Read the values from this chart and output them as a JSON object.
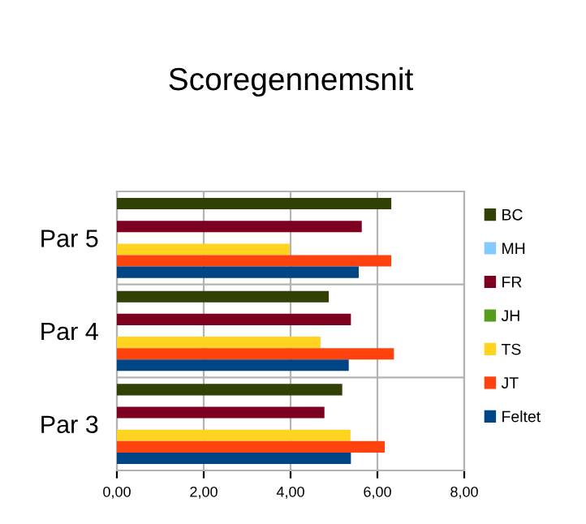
{
  "chart_data": {
    "type": "bar",
    "orientation": "horizontal",
    "title": "Scoregennemsnit",
    "categories": [
      "Par 5",
      "Par 4",
      "Par 3"
    ],
    "series": [
      {
        "name": "BC",
        "color": "#314004",
        "values": [
          6.32,
          4.88,
          5.19
        ]
      },
      {
        "name": "MH",
        "color": "#83caff",
        "values": [
          null,
          null,
          null
        ]
      },
      {
        "name": "FR",
        "color": "#7e0021",
        "values": [
          5.64,
          5.39,
          4.78
        ]
      },
      {
        "name": "JH",
        "color": "#579d1c",
        "values": [
          null,
          null,
          null
        ]
      },
      {
        "name": "TS",
        "color": "#ffd320",
        "values": [
          3.98,
          4.69,
          5.38
        ]
      },
      {
        "name": "JT",
        "color": "#ff420e",
        "values": [
          6.32,
          6.38,
          6.17
        ]
      },
      {
        "name": "Feltet",
        "color": "#004586",
        "values": [
          5.57,
          5.34,
          5.39
        ]
      }
    ],
    "xlim": [
      0,
      8
    ],
    "xticks": [
      {
        "value": 0,
        "label": "0,00"
      },
      {
        "value": 2,
        "label": "2,00"
      },
      {
        "value": 4,
        "label": "4,00"
      },
      {
        "value": 6,
        "label": "6,00"
      },
      {
        "value": 8,
        "label": "8,00"
      }
    ],
    "grid": true,
    "legend": "right"
  }
}
